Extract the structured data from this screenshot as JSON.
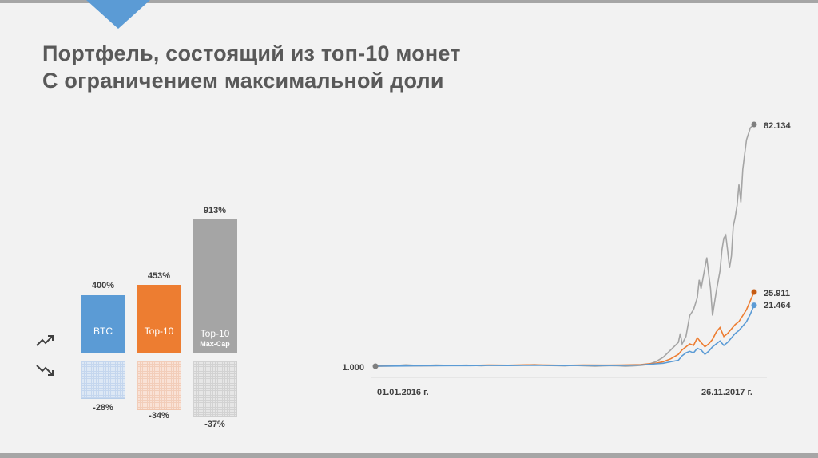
{
  "title_lines": [
    "Портфель, состоящий из топ-10 монет",
    "С ограничением максимальной доли"
  ],
  "colors": {
    "btc": "#5b9bd5",
    "top10": "#ed7d31",
    "maxcap": "#a5a5a5"
  },
  "icons": {
    "up": "trend-up-icon",
    "down": "trend-down-icon"
  },
  "bars": [
    {
      "label": "BTC",
      "sublabel": "",
      "growth": 400,
      "growth_label": "400%",
      "drawdown": -28,
      "drawdown_label": "-28%"
    },
    {
      "label": "Top-10",
      "sublabel": "",
      "growth": 453,
      "growth_label": "453%",
      "drawdown": -34,
      "drawdown_label": "-34%"
    },
    {
      "label": "Top-10",
      "sublabel": "Max-Cap",
      "growth": 913,
      "growth_label": "913%",
      "drawdown": -37,
      "drawdown_label": "-37%"
    }
  ],
  "chart_data": [
    {
      "type": "bar",
      "categories": [
        "BTC",
        "Top-10",
        "Top-10 Max-Cap"
      ],
      "series": [
        {
          "values": [
            400,
            453,
            913
          ]
        },
        {
          "values": [
            -28,
            -34,
            -37
          ]
        }
      ],
      "data_labels": [
        "400%",
        "453%",
        "913%",
        "-28%",
        "-34%",
        "-37%"
      ]
    },
    {
      "type": "line",
      "x_start_label": "01.01.2016 г.",
      "x_end_label": "26.11.2017 г.",
      "start_label": "1.000",
      "end_labels": [
        "82.134",
        "25.911",
        "21.464"
      ],
      "series": [
        {
          "color": "#a5a5a5",
          "end_value": 82.134,
          "points": [
            [
              0,
              1
            ],
            [
              0.05,
              1.2
            ],
            [
              0.08,
              1.45
            ],
            [
              0.12,
              1.2
            ],
            [
              0.16,
              1.4
            ],
            [
              0.2,
              1.25
            ],
            [
              0.24,
              1.35
            ],
            [
              0.28,
              1.15
            ],
            [
              0.3,
              1.3
            ],
            [
              0.34,
              1.25
            ],
            [
              0.38,
              1.3
            ],
            [
              0.42,
              1.5
            ],
            [
              0.45,
              1.25
            ],
            [
              0.48,
              1.2
            ],
            [
              0.5,
              1.1
            ],
            [
              0.52,
              1.3
            ],
            [
              0.55,
              1.15
            ],
            [
              0.58,
              1.0
            ],
            [
              0.6,
              1.1
            ],
            [
              0.62,
              1.2
            ],
            [
              0.64,
              1.15
            ],
            [
              0.66,
              1.0
            ],
            [
              0.68,
              1.1
            ],
            [
              0.7,
              1.3
            ],
            [
              0.72,
              1.6
            ],
            [
              0.74,
              2.5
            ],
            [
              0.76,
              4.0
            ],
            [
              0.78,
              6.5
            ],
            [
              0.8,
              9.0
            ],
            [
              0.805,
              12.0
            ],
            [
              0.81,
              8.5
            ],
            [
              0.82,
              11.0
            ],
            [
              0.83,
              18.0
            ],
            [
              0.84,
              20.0
            ],
            [
              0.85,
              24.0
            ],
            [
              0.855,
              30.0
            ],
            [
              0.86,
              27.0
            ],
            [
              0.87,
              34.0
            ],
            [
              0.875,
              37.5
            ],
            [
              0.88,
              32.0
            ],
            [
              0.885,
              27.0
            ],
            [
              0.89,
              18.0
            ],
            [
              0.895,
              22.0
            ],
            [
              0.9,
              26.0
            ],
            [
              0.91,
              33.0
            ],
            [
              0.915,
              40.0
            ],
            [
              0.92,
              44.0
            ],
            [
              0.925,
              45.0
            ],
            [
              0.93,
              40.0
            ],
            [
              0.935,
              34.0
            ],
            [
              0.94,
              38.0
            ],
            [
              0.945,
              48.0
            ],
            [
              0.95,
              51.0
            ],
            [
              0.955,
              55.0
            ],
            [
              0.96,
              62.0
            ],
            [
              0.965,
              56.0
            ],
            [
              0.97,
              67.0
            ],
            [
              0.975,
              72.0
            ],
            [
              0.98,
              77.0
            ],
            [
              0.985,
              79.0
            ],
            [
              0.99,
              81.0
            ],
            [
              1.0,
              82.134
            ]
          ]
        },
        {
          "color": "#ed7d31",
          "end_value": 25.911,
          "points": [
            [
              0,
              1
            ],
            [
              0.05,
              1.08
            ],
            [
              0.1,
              1.15
            ],
            [
              0.15,
              1.2
            ],
            [
              0.2,
              1.3
            ],
            [
              0.25,
              1.28
            ],
            [
              0.3,
              1.4
            ],
            [
              0.35,
              1.33
            ],
            [
              0.4,
              1.45
            ],
            [
              0.45,
              1.38
            ],
            [
              0.5,
              1.3
            ],
            [
              0.55,
              1.4
            ],
            [
              0.6,
              1.35
            ],
            [
              0.65,
              1.4
            ],
            [
              0.7,
              1.5
            ],
            [
              0.72,
              1.8
            ],
            [
              0.74,
              2.0
            ],
            [
              0.76,
              2.5
            ],
            [
              0.78,
              3.5
            ],
            [
              0.8,
              5.0
            ],
            [
              0.81,
              6.5
            ],
            [
              0.82,
              7.5
            ],
            [
              0.83,
              8.5
            ],
            [
              0.84,
              8.0
            ],
            [
              0.85,
              10.5
            ],
            [
              0.86,
              9.0
            ],
            [
              0.87,
              7.5
            ],
            [
              0.88,
              8.5
            ],
            [
              0.89,
              10.0
            ],
            [
              0.9,
              12.5
            ],
            [
              0.91,
              14.0
            ],
            [
              0.92,
              11.0
            ],
            [
              0.93,
              12.0
            ],
            [
              0.94,
              13.5
            ],
            [
              0.95,
              15.0
            ],
            [
              0.96,
              16.0
            ],
            [
              0.97,
              18.0
            ],
            [
              0.98,
              20.0
            ],
            [
              0.99,
              23.0
            ],
            [
              1.0,
              25.911
            ]
          ]
        },
        {
          "color": "#5b9bd5",
          "end_value": 21.464,
          "points": [
            [
              0,
              1
            ],
            [
              0.05,
              1.05
            ],
            [
              0.1,
              1.1
            ],
            [
              0.15,
              1.15
            ],
            [
              0.2,
              1.2
            ],
            [
              0.25,
              1.18
            ],
            [
              0.3,
              1.28
            ],
            [
              0.35,
              1.22
            ],
            [
              0.4,
              1.32
            ],
            [
              0.45,
              1.28
            ],
            [
              0.5,
              1.22
            ],
            [
              0.55,
              1.3
            ],
            [
              0.6,
              1.25
            ],
            [
              0.65,
              1.3
            ],
            [
              0.7,
              1.4
            ],
            [
              0.72,
              1.6
            ],
            [
              0.74,
              1.8
            ],
            [
              0.76,
              2.0
            ],
            [
              0.78,
              2.5
            ],
            [
              0.8,
              3.0
            ],
            [
              0.81,
              4.5
            ],
            [
              0.82,
              5.5
            ],
            [
              0.83,
              6.0
            ],
            [
              0.84,
              5.5
            ],
            [
              0.85,
              7.0
            ],
            [
              0.86,
              6.5
            ],
            [
              0.87,
              5.0
            ],
            [
              0.88,
              6.0
            ],
            [
              0.89,
              7.5
            ],
            [
              0.9,
              8.5
            ],
            [
              0.91,
              9.5
            ],
            [
              0.92,
              8.0
            ],
            [
              0.93,
              9.0
            ],
            [
              0.94,
              10.5
            ],
            [
              0.95,
              12.0
            ],
            [
              0.96,
              13.0
            ],
            [
              0.97,
              14.5
            ],
            [
              0.98,
              16.0
            ],
            [
              0.99,
              18.5
            ],
            [
              1.0,
              21.464
            ]
          ]
        }
      ]
    }
  ]
}
